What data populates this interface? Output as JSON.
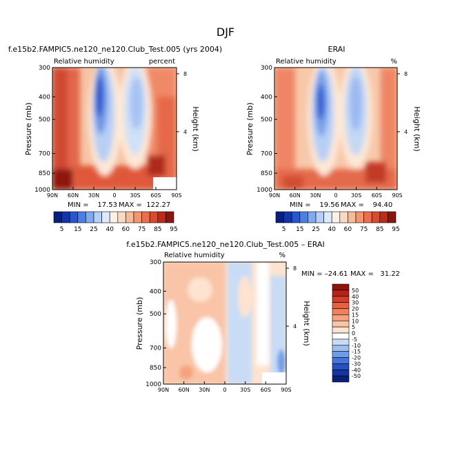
{
  "figure": {
    "season": "DJF"
  },
  "panels": [
    {
      "title": "f.e15b2.FAMPIC5.ne120_ne120.Club_Test.005 (yrs 2004)",
      "left_label": "Relative humidity",
      "units": "percent",
      "ylabel": "Pressure (mb)",
      "y2label": "Height (km)",
      "min_text": "MIN =    17.53",
      "max_text": "MAX =  122.27"
    },
    {
      "title": "ERAI",
      "left_label": "Relative humidity",
      "units": "%",
      "ylabel": "Pressure (mb)",
      "y2label": "Height (km)",
      "min_text": "MIN =    19.56",
      "max_text": "MAX =    94.40"
    },
    {
      "title": "f.e15b2.FAMPIC5.ne120_ne120.Club_Test.005 – ERAI",
      "left_label": "Relative humidity",
      "units": "%",
      "ylabel": "Pressure (mb)",
      "y2label": "Height (km)",
      "min_text": "MIN = –24.61",
      "max_text": "MAX =   31.22"
    }
  ],
  "chart_data": [
    {
      "type": "heatmap",
      "title": "f.e15b2.FAMPIC5.ne120_ne120.Club_Test.005 (yrs 2004)",
      "x_ticks": [
        "90N",
        "60N",
        "30N",
        "0",
        "30S",
        "60S",
        "90S"
      ],
      "y_ticks": [
        "300",
        "400",
        "500",
        "700",
        "850",
        "1000"
      ],
      "y2_ticks": [
        "8",
        "4"
      ],
      "ylim": [
        1000,
        300
      ],
      "y_scale": "log",
      "min": 17.53,
      "max": 122.27,
      "colorbar_levels": [
        5,
        15,
        25,
        40,
        60,
        75,
        85,
        95
      ],
      "colorbar_colors": [
        "#08207d",
        "#1435a8",
        "#2855d0",
        "#4a80e6",
        "#7faaf2",
        "#b5cff8",
        "#ddeafd",
        "#fdf1e6",
        "#fbd9bf",
        "#f8bb98",
        "#f29671",
        "#e8704c",
        "#d84b2f",
        "#bc2c1d",
        "#8e1410"
      ]
    },
    {
      "type": "heatmap",
      "title": "ERAI",
      "x_ticks": [
        "90N",
        "60N",
        "30N",
        "0",
        "30S",
        "60S",
        "90S"
      ],
      "y_ticks": [
        "300",
        "400",
        "500",
        "700",
        "850",
        "1000"
      ],
      "y2_ticks": [
        "8",
        "4"
      ],
      "ylim": [
        1000,
        300
      ],
      "y_scale": "log",
      "min": 19.56,
      "max": 94.4,
      "colorbar_levels": [
        5,
        15,
        25,
        40,
        60,
        75,
        85,
        95
      ]
    },
    {
      "type": "heatmap",
      "title": "f.e15b2.FAMPIC5.ne120_ne120.Club_Test.005 – ERAI",
      "x_ticks": [
        "90N",
        "60N",
        "30N",
        "0",
        "30S",
        "60S",
        "90S"
      ],
      "y_ticks": [
        "300",
        "400",
        "500",
        "700",
        "850",
        "1000"
      ],
      "y2_ticks": [
        "8",
        "4"
      ],
      "ylim": [
        1000,
        300
      ],
      "y_scale": "log",
      "min": -24.61,
      "max": 31.22,
      "colorbar_levels": [
        50,
        40,
        30,
        20,
        15,
        10,
        5,
        0,
        -5,
        -10,
        -15,
        -20,
        -30,
        -40,
        -50
      ],
      "colorbar_colors": [
        "#8e1410",
        "#b52419",
        "#d43e26",
        "#e6613f",
        "#ef825c",
        "#f5a27e",
        "#f9c4a7",
        "#fde3d0",
        "#ffffff",
        "#c9dcf6",
        "#9dbff0",
        "#6f9ce8",
        "#4476db",
        "#2752c4",
        "#1733a0",
        "#0a1f7a"
      ]
    }
  ]
}
